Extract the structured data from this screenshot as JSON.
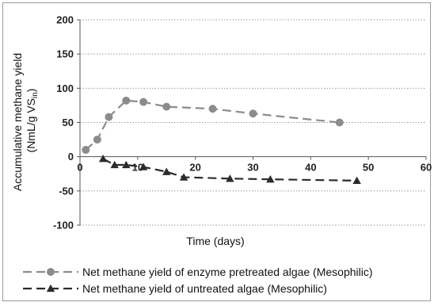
{
  "chart_data": {
    "type": "line",
    "title": "",
    "xlabel": "Time (days)",
    "ylabel": {
      "line1": "Accumulative methane yield",
      "line2_pre": "(NmL/g VS",
      "line2_sub": "in",
      "line2_post": ")"
    },
    "xlim": [
      0,
      60
    ],
    "ylim": [
      -100,
      200
    ],
    "xticks": [
      "0",
      "10",
      "20",
      "30",
      "40",
      "50",
      "60"
    ],
    "yticks": [
      "-100",
      "-50",
      "0",
      "50",
      "100",
      "150",
      "200"
    ],
    "grid": "horizontal dotted",
    "legend_position": "bottom",
    "series": [
      {
        "name": "Net methane yield of enzyme pretreated algae (Mesophilic)",
        "marker": "circle",
        "color": "#8c8c8c",
        "x": [
          1,
          3,
          5,
          8,
          11,
          15,
          23,
          30,
          45
        ],
        "y": [
          10,
          25,
          58,
          82,
          80,
          73,
          70,
          63,
          50
        ]
      },
      {
        "name": "Net methane yield of untreated algae (Mesophilic)",
        "marker": "triangle",
        "color": "#2b2b2b",
        "x": [
          4,
          6,
          8,
          11,
          15,
          18,
          26,
          33,
          48
        ],
        "y": [
          -3,
          -12,
          -12,
          -15,
          -22,
          -30,
          -32,
          -33,
          -35
        ]
      }
    ]
  }
}
